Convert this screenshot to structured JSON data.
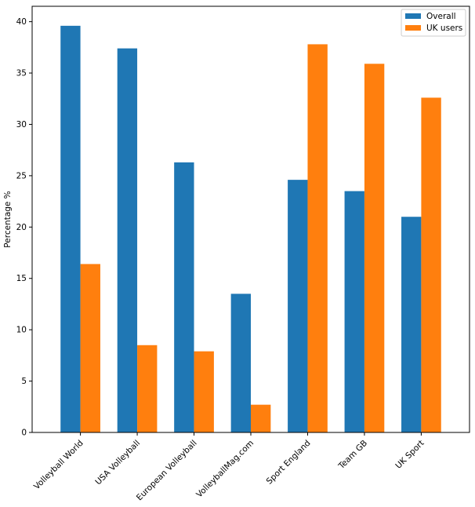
{
  "chart_data": {
    "type": "bar",
    "title": "",
    "xlabel": "",
    "ylabel": "Percentage %",
    "ylim": [
      0,
      41.5
    ],
    "yticks": [
      0,
      5,
      10,
      15,
      20,
      25,
      30,
      35,
      40
    ],
    "grid": false,
    "legend_position": "top-right",
    "categories": [
      "Volleyball World",
      "USA Volleyball",
      "European Volleyball",
      "VolleyballMag.com",
      "Sport England",
      "Team GB",
      "UK Sport"
    ],
    "series": [
      {
        "name": "Overall",
        "color": "#1f77b4",
        "values": [
          39.6,
          37.4,
          26.3,
          13.5,
          24.6,
          23.5,
          21.0
        ]
      },
      {
        "name": "UK users",
        "color": "#ff7f0e",
        "values": [
          16.4,
          8.5,
          7.9,
          2.7,
          37.8,
          35.9,
          32.6
        ]
      }
    ]
  }
}
